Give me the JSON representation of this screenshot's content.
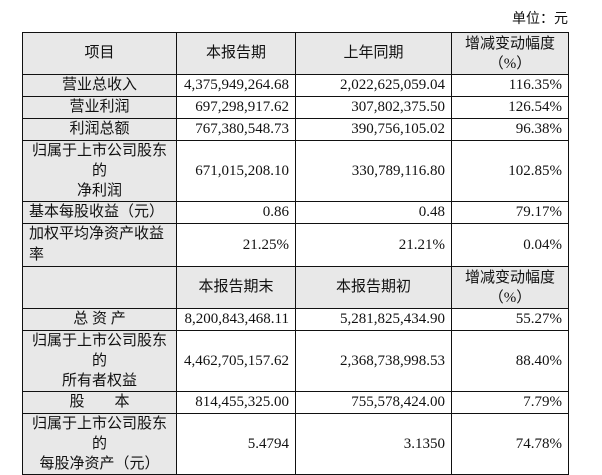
{
  "unit_label": "单位：元",
  "section1": {
    "headers": [
      "项目",
      "本报告期",
      "上年同期",
      "增减变动幅度",
      "（%）"
    ],
    "rows": [
      {
        "label": "营业总收入",
        "label2": "",
        "current": "4,375,949,264.68",
        "prior": "2,022,625,059.04",
        "change": "116.35%"
      },
      {
        "label": "营业利润",
        "label2": "",
        "current": "697,298,917.62",
        "prior": "307,802,375.50",
        "change": "126.54%"
      },
      {
        "label": "利润总额",
        "label2": "",
        "current": "767,380,548.73",
        "prior": "390,756,105.02",
        "change": "96.38%"
      },
      {
        "label": "归属于上市公司股东的",
        "label2": "净利润",
        "current": "671,015,208.10",
        "prior": "330,789,116.80",
        "change": "102.85%"
      },
      {
        "label": "基本每股收益（元）",
        "label2": "",
        "current": "0.86",
        "prior": "0.48",
        "change": "79.17%"
      },
      {
        "label": "加权平均净资产收益率",
        "label2": "",
        "current": "21.25%",
        "prior": "21.21%",
        "change": "0.04%"
      }
    ]
  },
  "section2": {
    "headers": [
      "",
      "本报告期末",
      "本报告期初",
      "增减变动幅度",
      "（%）"
    ],
    "rows": [
      {
        "label": "总 资 产",
        "label2": "",
        "current": "8,200,843,468.11",
        "prior": "5,281,825,434.90",
        "change": "55.27%"
      },
      {
        "label": "归属于上市公司股东的",
        "label2": "所有者权益",
        "current": "4,462,705,157.62",
        "prior": "2,368,738,998.53",
        "change": "88.40%"
      },
      {
        "label": "股　　本",
        "label2": "",
        "current": "814,455,325.00",
        "prior": "755,578,424.00",
        "change": "7.79%"
      },
      {
        "label": "归属于上市公司股东的",
        "label2": "每股净资产（元）",
        "current": "5.4794",
        "prior": "3.1350",
        "change": "74.78%"
      }
    ]
  }
}
